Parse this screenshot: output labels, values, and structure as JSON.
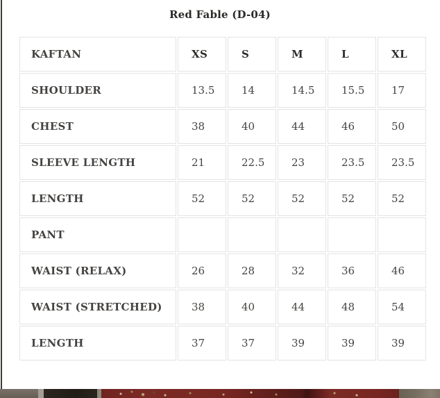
{
  "title": "Red Fable (D-04)",
  "size_chart": {
    "rows": [
      {
        "label": "KAFTAN",
        "values": [
          "XS",
          "S",
          "M",
          "L",
          "XL"
        ]
      },
      {
        "label": "SHOULDER",
        "values": [
          "13.5",
          "14",
          "14.5",
          "15.5",
          "17"
        ]
      },
      {
        "label": "CHEST",
        "values": [
          "38",
          "40",
          "44",
          "46",
          "50"
        ]
      },
      {
        "label": "SLEEVE LENGTH",
        "values": [
          "21",
          "22.5",
          "23",
          "23.5",
          "23.5"
        ]
      },
      {
        "label": "LENGTH",
        "values": [
          "52",
          "52",
          "52",
          "52",
          "52"
        ]
      },
      {
        "label": "PANT",
        "values": [
          "",
          "",
          "",
          "",
          ""
        ]
      },
      {
        "label": "WAIST (RELAX)",
        "values": [
          "26",
          "28",
          "32",
          "36",
          "46"
        ]
      },
      {
        "label": "WAIST (STRETCHED)",
        "values": [
          "38",
          "40",
          "44",
          "48",
          "54"
        ]
      },
      {
        "label": "LENGTH",
        "values": [
          "37",
          "37",
          "39",
          "39",
          "39"
        ]
      }
    ]
  },
  "colors": {
    "table_border": "#e3e3e3",
    "label_text": "#2e2d2b",
    "value_text": "#454341",
    "edge_line": "#3e3a35",
    "fabric_red": "#772622",
    "fabric_red_dark": "#3c1412",
    "embroidery_gold": "#9a8a55",
    "embroidery_cream": "#cabd9b",
    "wall_left": "#6b6359",
    "wall_right": "#766d61",
    "dark_panel": "#221c16"
  }
}
